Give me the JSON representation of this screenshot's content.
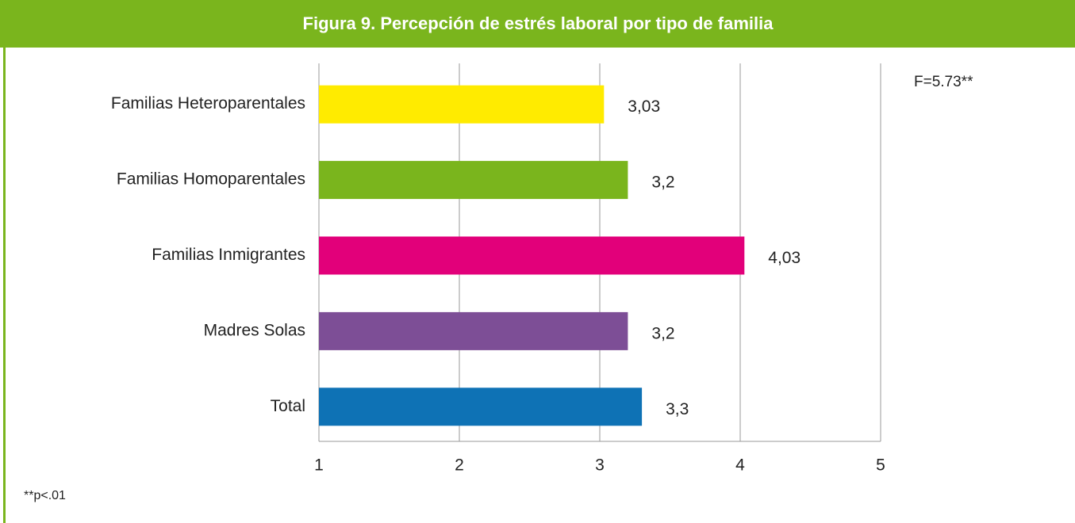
{
  "chart_data": {
    "type": "hbar",
    "title": "Figura 9. Percepción de estrés laboral por tipo de familia",
    "categories": [
      "Familias Heteroparentales",
      "Familias Homoparentales",
      "Familias Inmigrantes",
      "Madres Solas",
      "Total"
    ],
    "values": [
      3.03,
      3.2,
      4.03,
      3.2,
      3.3
    ],
    "value_labels": [
      "3,03",
      "3,2",
      "4,03",
      "3,2",
      "3,3"
    ],
    "colors": [
      "#ffeb00",
      "#7ab51d",
      "#e2007a",
      "#7d4e96",
      "#0e72b5"
    ],
    "xlim": [
      1,
      5
    ],
    "xticks": [
      1,
      2,
      3,
      4,
      5
    ],
    "grid": true,
    "annotations": [
      "F=5.73**",
      "**p<.01"
    ]
  }
}
